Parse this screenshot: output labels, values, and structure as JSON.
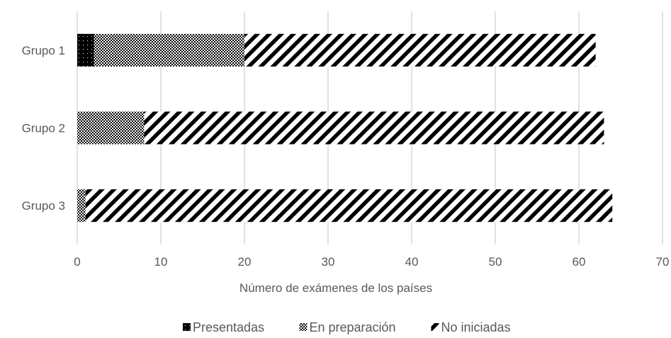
{
  "chart_data": {
    "type": "bar",
    "orientation": "horizontal",
    "stacked": true,
    "categories": [
      "Grupo 1",
      "Grupo 2",
      "Grupo 3"
    ],
    "series": [
      {
        "name": "Presentadas",
        "values": [
          2,
          0,
          0
        ],
        "pattern": "solid"
      },
      {
        "name": "En preparación",
        "values": [
          18,
          8,
          1
        ],
        "pattern": "checker"
      },
      {
        "name": "No iniciadas",
        "values": [
          42,
          55,
          63
        ],
        "pattern": "diagonal"
      }
    ],
    "xlabel": "Número de exámenes de los países",
    "xlim": [
      0,
      70
    ],
    "xticks": [
      0,
      10,
      20,
      30,
      40,
      50,
      60,
      70
    ],
    "grid": true,
    "legend_position": "bottom",
    "colors": {
      "bar": "#000000",
      "text": "#595959",
      "grid": "#d9d9d9"
    }
  }
}
